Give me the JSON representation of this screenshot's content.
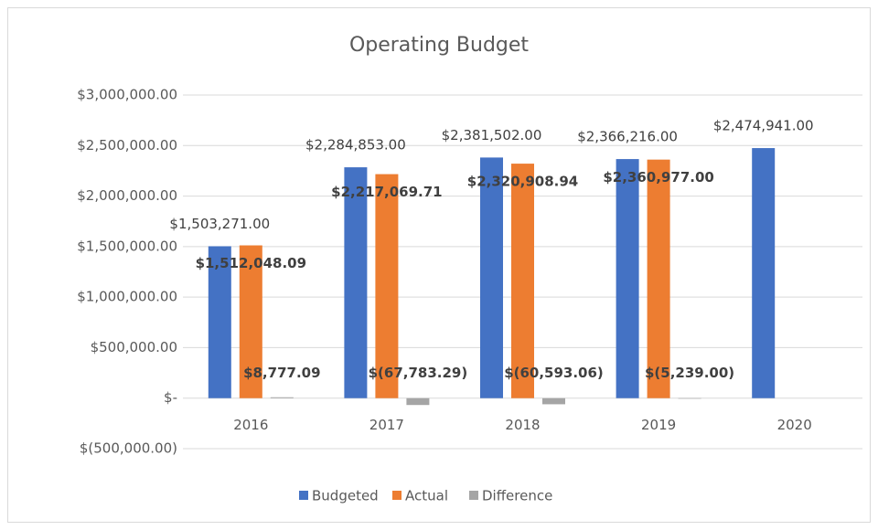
{
  "chart_data": {
    "type": "bar",
    "title": "Operating Budget",
    "categories": [
      "2016",
      "2017",
      "2018",
      "2019",
      "2020"
    ],
    "series": [
      {
        "name": "Budgeted",
        "color": "#4472c4",
        "values": [
          1503271,
          2284853,
          2381502,
          2366216,
          2474941
        ],
        "value_labels": [
          "$1,503,271.00",
          "$2,284,853.00",
          "$2,381,502.00",
          "$2,366,216.00",
          "$2,474,941.00"
        ]
      },
      {
        "name": "Actual",
        "color": "#ed7d31",
        "values": [
          1512048.09,
          2217069.71,
          2320908.94,
          2360977,
          null
        ],
        "value_labels": [
          "$1,512,048.09",
          "$2,217,069.71",
          "$2,320,908.94",
          "$2,360,977.00",
          null
        ]
      },
      {
        "name": "Difference",
        "color": "#a5a5a5",
        "values": [
          8777.09,
          -67783.29,
          -60593.06,
          -5239,
          null
        ],
        "value_labels": [
          "$8,777.09",
          "$(67,783.29)",
          "$(60,593.06)",
          "$(5,239.00)",
          null
        ]
      }
    ],
    "ylim": [
      -500000,
      3000000
    ],
    "yticks": [
      {
        "value": -500000,
        "label": "$(500,000.00)"
      },
      {
        "value": 0,
        "label": "$-"
      },
      {
        "value": 500000,
        "label": "$500,000.00"
      },
      {
        "value": 1000000,
        "label": "$1,000,000.00"
      },
      {
        "value": 1500000,
        "label": "$1,500,000.00"
      },
      {
        "value": 2000000,
        "label": "$2,000,000.00"
      },
      {
        "value": 2500000,
        "label": "$2,500,000.00"
      },
      {
        "value": 3000000,
        "label": "$3,000,000.00"
      }
    ],
    "grid": true,
    "legend": "bottom"
  }
}
